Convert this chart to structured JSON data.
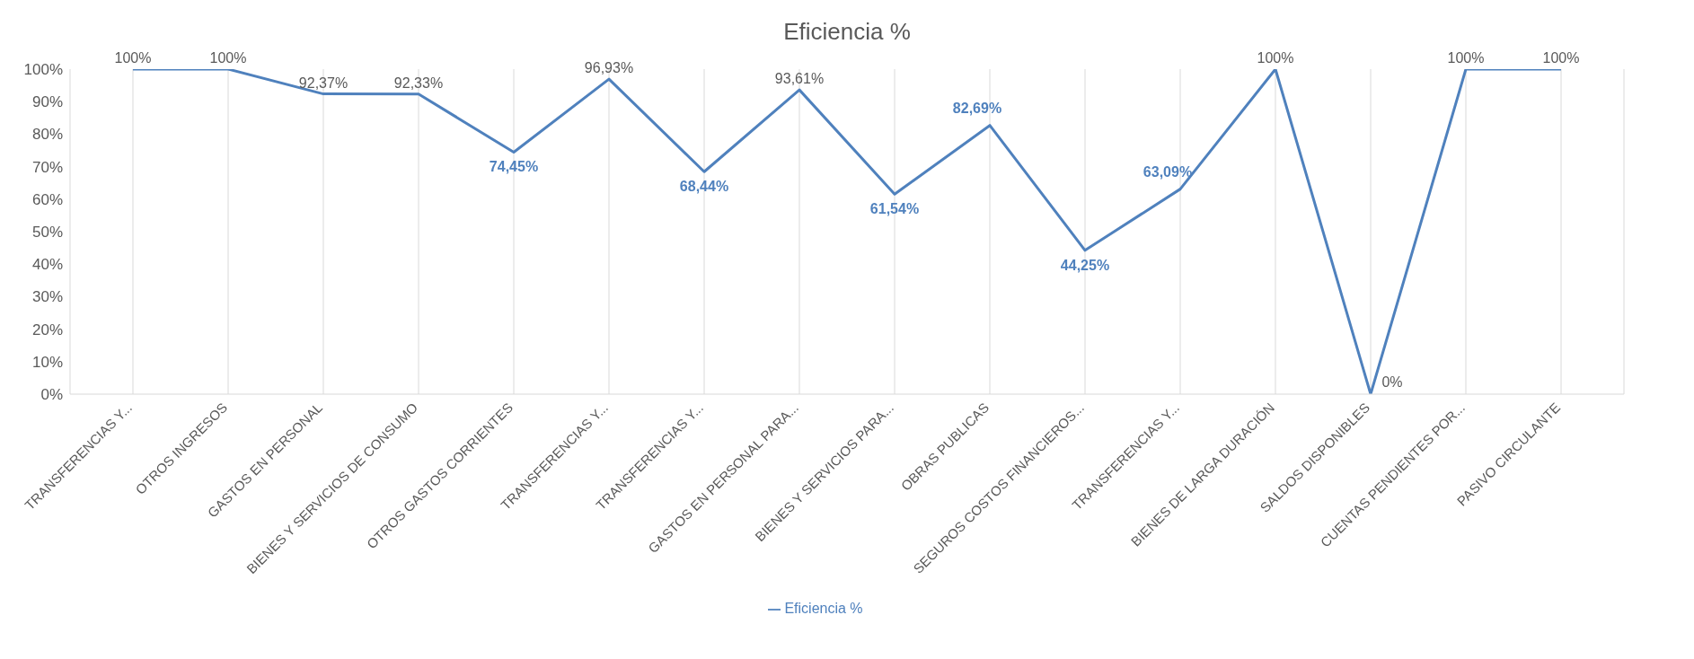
{
  "chart_data": {
    "type": "line",
    "title": "Eficiencia %",
    "categories": [
      "TRANSFERENCIAS  Y...",
      "OTROS INGRESOS",
      "GASTOS EN PERSONAL",
      "BIENES Y SERVICIOS DE CONSUMO",
      "OTROS GASTOS CORRIENTES",
      "TRANSFERENCIAS  Y...",
      "TRANSFERENCIAS  Y...",
      "GASTOS EN PERSONAL  PARA...",
      "BIENES Y SERVICIOS PARA...",
      "OBRAS PUBLICAS",
      "SEGUROS COSTOS FINANCIEROS...",
      "TRANSFERENCIAS  Y...",
      "BIENES DE LARGA DURACIÓN",
      "SALDOS DISPONIBLES",
      "CUENTAS PENDIENTES  POR...",
      "PASIVO CIRCULANTE"
    ],
    "series": [
      {
        "name": "Eficiencia %",
        "color": "#4f81bd",
        "values": [
          100,
          100,
          92.37,
          92.33,
          74.45,
          96.93,
          68.44,
          93.61,
          61.54,
          82.69,
          44.25,
          63.09,
          100,
          0,
          100,
          100
        ],
        "value_labels": [
          "100%",
          "100%",
          "92,37%",
          "92,33%",
          "74,45%",
          "96,93%",
          "68,44%",
          "93,61%",
          "61,54%",
          "82,69%",
          "44,25%",
          "63,09%",
          "100%",
          "0%",
          "100%",
          "100%"
        ]
      }
    ],
    "ylim": [
      0,
      100
    ],
    "yticks": [
      {
        "value": 0,
        "label": "0%"
      },
      {
        "value": 10,
        "label": "10%"
      },
      {
        "value": 20,
        "label": "20%"
      },
      {
        "value": 30,
        "label": "30%"
      },
      {
        "value": 40,
        "label": "40%"
      },
      {
        "value": 50,
        "label": "50%"
      },
      {
        "value": 60,
        "label": "60%"
      },
      {
        "value": 70,
        "label": "70%"
      },
      {
        "value": 80,
        "label": "80%"
      },
      {
        "value": 90,
        "label": "90%"
      },
      {
        "value": 100,
        "label": "100%"
      }
    ],
    "grid": "x",
    "legend": "bottom",
    "marker": "none",
    "line_style": "solid"
  }
}
